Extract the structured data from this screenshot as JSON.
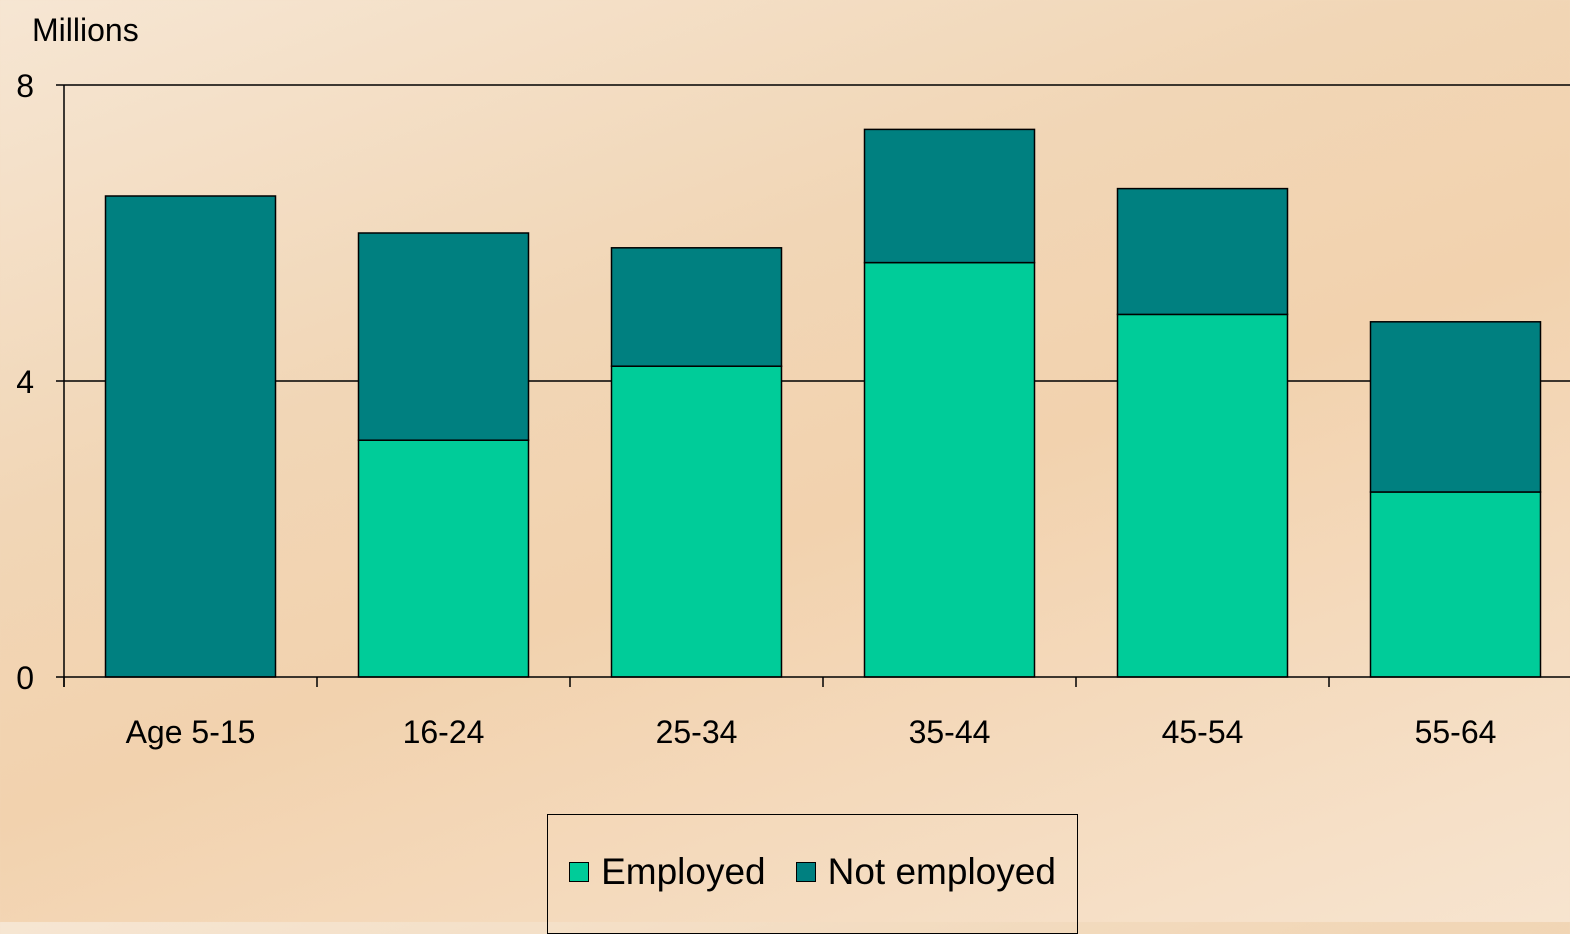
{
  "chart_data": {
    "type": "bar",
    "stacked": true,
    "ylabel": "Millions",
    "ylim": [
      0,
      8
    ],
    "yticks": [
      0,
      4,
      8
    ],
    "categories": [
      "Age 5-15",
      "16-24",
      "25-34",
      "35-44",
      "45-54",
      "55-64"
    ],
    "series": [
      {
        "name": "Employed",
        "color": "#00cc99",
        "values": [
          0,
          3.2,
          4.2,
          5.6,
          4.9,
          2.5
        ]
      },
      {
        "name": "Not employed",
        "color": "#008080",
        "values": [
          6.5,
          2.8,
          1.6,
          1.8,
          1.7,
          2.3
        ]
      }
    ],
    "grid": true,
    "legend": "bottom"
  }
}
